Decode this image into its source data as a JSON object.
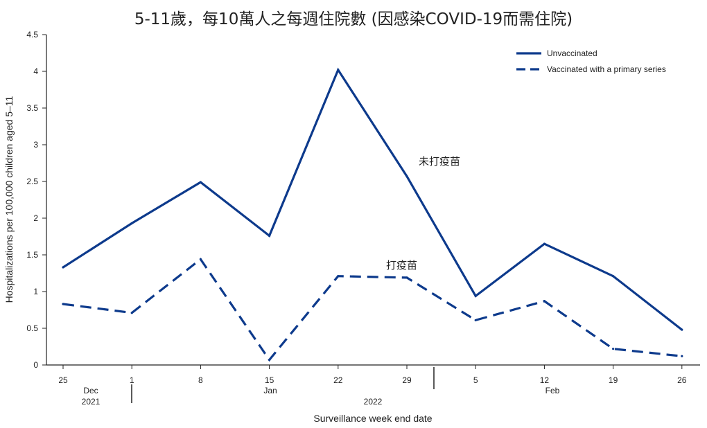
{
  "chart_data": {
    "type": "line",
    "title": "5-11歲，每10萬人之每週住院數 (因感染COVID-19而需住院)",
    "xlabel": "Surveillance week end date",
    "ylabel": "Hospitalizations per 100,000 children aged 5–11",
    "ylim": [
      0,
      4.5
    ],
    "y_ticks": [
      "0",
      "0.5",
      "1",
      "1.5",
      "2",
      "2.5",
      "3",
      "3.5",
      "4",
      "4.5"
    ],
    "x": [
      "2021-12-25",
      "2022-01-01",
      "2022-01-08",
      "2022-01-15",
      "2022-01-22",
      "2022-01-29",
      "2022-02-05",
      "2022-02-12",
      "2022-02-19",
      "2022-02-26"
    ],
    "x_tick_labels": [
      "25",
      "1",
      "8",
      "15",
      "22",
      "29",
      "5",
      "12",
      "19",
      "26"
    ],
    "month_labels": [
      {
        "text": "Dec",
        "year": "2021"
      },
      {
        "text": "Jan",
        "year": ""
      },
      {
        "text": "Feb",
        "year": ""
      }
    ],
    "year_label_2022": "2022",
    "series": [
      {
        "name": "Unvaccinated",
        "style": "solid",
        "color": "#0d3a8c",
        "values": [
          1.33,
          1.93,
          2.49,
          1.76,
          4.02,
          2.57,
          0.94,
          1.65,
          1.21,
          0.48
        ]
      },
      {
        "name": "Vaccinated with a primary series",
        "style": "dashed",
        "color": "#0d3a8c",
        "values": [
          0.83,
          0.71,
          1.44,
          0.07,
          1.21,
          1.19,
          0.61,
          0.87,
          0.22,
          0.12
        ]
      }
    ],
    "legend_position": "top-right",
    "annotations": [
      {
        "text": "未打疫苗",
        "series": "Unvaccinated"
      },
      {
        "text": "打疫苗",
        "series": "Vaccinated with a primary series"
      }
    ],
    "grid": false
  }
}
